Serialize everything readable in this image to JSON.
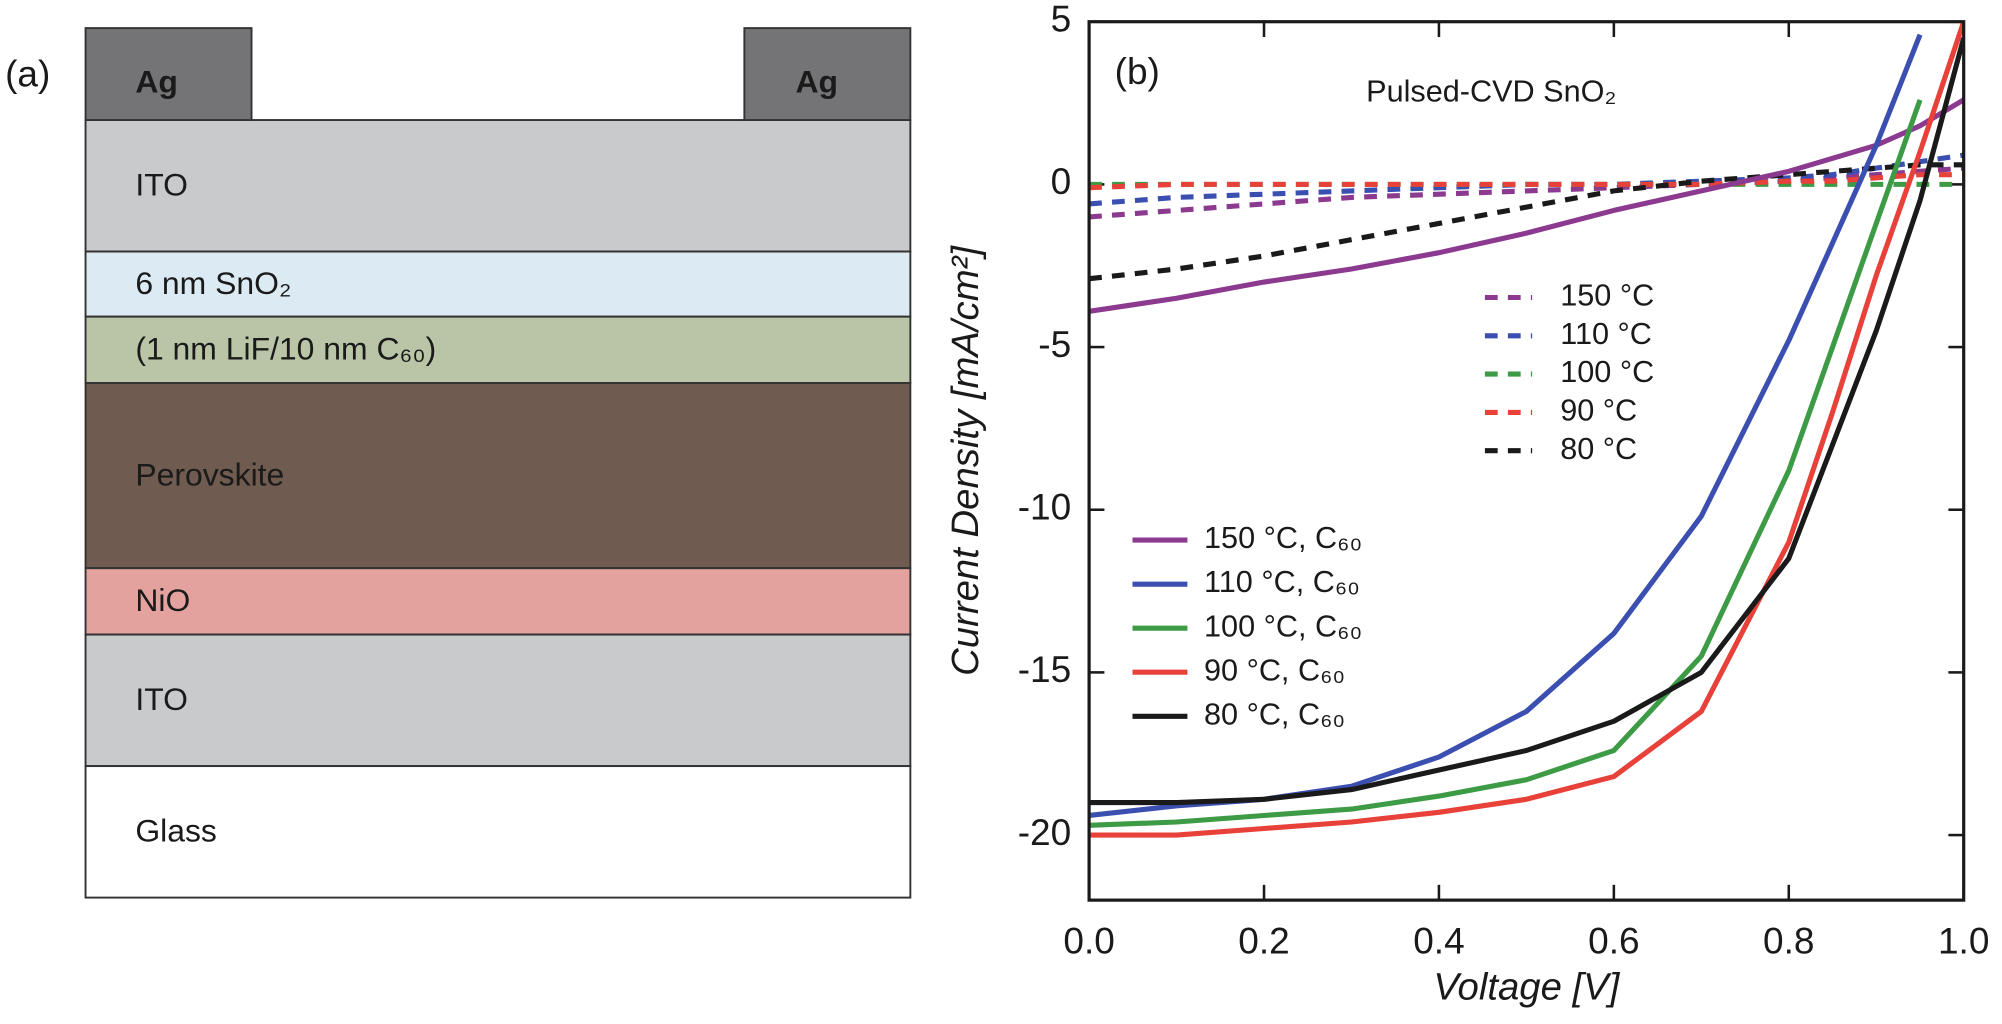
{
  "diagram": {
    "panel_label": "(a)",
    "contacts": [
      {
        "label": "Ag",
        "color": "#747476"
      },
      {
        "label": "Ag",
        "color": "#747476"
      }
    ],
    "layers": [
      {
        "label": "ITO",
        "color": "#c9cacc",
        "text_color": "#222222"
      },
      {
        "label": "6 nm SnO₂",
        "color": "#dceaf3",
        "text_color": "#222222"
      },
      {
        "label": "(1 nm LiF/10 nm C₆₀)",
        "color": "#b9c5a6",
        "text_color": "#222222"
      },
      {
        "label": "Perovskite",
        "color": "#6f5b4f",
        "text_color": "#f4f0ec"
      },
      {
        "label": "NiO",
        "color": "#e4a29e",
        "text_color": "#222222"
      },
      {
        "label": "ITO",
        "color": "#c9cacc",
        "text_color": "#222222"
      },
      {
        "label": "Glass",
        "color": "#ffffff",
        "text_color": "#222222"
      }
    ]
  },
  "chart_data": {
    "type": "line",
    "panel_label": "(b)",
    "title": "Pulsed-CVD SnO₂",
    "xlabel": "Voltage [V]",
    "ylabel": "Current Density [mA/cm²]",
    "x": [
      0,
      0.1,
      0.2,
      0.3,
      0.4,
      0.5,
      0.6,
      0.7,
      0.8,
      0.85,
      0.9,
      0.95,
      1.0
    ],
    "xlim": [
      0,
      1
    ],
    "ylim": [
      -22,
      5
    ],
    "xticks": [
      {
        "value": 0,
        "label": "0.0"
      },
      0.2,
      0.4,
      0.6,
      0.8,
      {
        "value": 1,
        "label": "1.0"
      }
    ],
    "yticks": [
      -20,
      -15,
      -10,
      -5,
      0,
      5
    ],
    "series": [
      {
        "name": "150 °C",
        "color": "#8b3a8f",
        "dashed": true,
        "values": [
          -1.0,
          -0.8,
          -0.6,
          -0.4,
          -0.3,
          -0.2,
          -0.1,
          0,
          0.1,
          0.2,
          0.3,
          0.4,
          0.5
        ]
      },
      {
        "name": "110 °C",
        "color": "#3b4fb0",
        "dashed": true,
        "values": [
          -0.6,
          -0.4,
          -0.3,
          -0.2,
          -0.1,
          0,
          0,
          0.1,
          0.2,
          0.3,
          0.5,
          0.7,
          0.9
        ]
      },
      {
        "name": "100 °C",
        "color": "#3d9a45",
        "dashed": true,
        "values": [
          0,
          0,
          0,
          0,
          0,
          0,
          0,
          0,
          0,
          0,
          0,
          0,
          0
        ]
      },
      {
        "name": "90 °C",
        "color": "#e8413a",
        "dashed": true,
        "values": [
          -0.1,
          0,
          0,
          0,
          0,
          0,
          0,
          0,
          0.1,
          0.1,
          0.2,
          0.3,
          0.3
        ]
      },
      {
        "name": "80 °C",
        "color": "#1a1a1a",
        "dashed": true,
        "values": [
          -2.9,
          -2.6,
          -2.2,
          -1.7,
          -1.2,
          -0.7,
          -0.2,
          0.1,
          0.3,
          0.4,
          0.5,
          0.6,
          0.6
        ]
      },
      {
        "name": "150 °C, C₆₀",
        "color": "#8b3a8f",
        "dashed": false,
        "values": [
          -3.9,
          -3.5,
          -3.0,
          -2.6,
          -2.1,
          -1.5,
          -0.8,
          -0.2,
          0.4,
          0.8,
          1.2,
          1.8,
          2.6
        ]
      },
      {
        "name": "110 °C, C₆₀",
        "color": "#3b4fb0",
        "dashed": false,
        "values": [
          -19.4,
          -19.1,
          -18.9,
          -18.5,
          -17.6,
          -16.2,
          -13.8,
          -10.2,
          -4.8,
          -1.8,
          1.2,
          4.6,
          null
        ]
      },
      {
        "name": "100 °C, C₆₀",
        "color": "#3d9a45",
        "dashed": false,
        "values": [
          -19.7,
          -19.6,
          -19.4,
          -19.2,
          -18.8,
          -18.3,
          -17.4,
          -14.5,
          -8.8,
          -5.0,
          -1.2,
          2.6,
          null
        ]
      },
      {
        "name": "90 °C, C₆₀",
        "color": "#e8413a",
        "dashed": false,
        "values": [
          -20.0,
          -20.0,
          -19.8,
          -19.6,
          -19.3,
          -18.9,
          -18.2,
          -16.2,
          -11.0,
          -7.0,
          -2.8,
          1.0,
          5.0
        ]
      },
      {
        "name": "80 °C, C₆₀",
        "color": "#1a1a1a",
        "dashed": false,
        "values": [
          -19.0,
          -19.0,
          -18.9,
          -18.6,
          -18.0,
          -17.4,
          -16.5,
          -15.0,
          -11.5,
          -8.0,
          -4.5,
          -0.5,
          4.5
        ]
      }
    ]
  }
}
